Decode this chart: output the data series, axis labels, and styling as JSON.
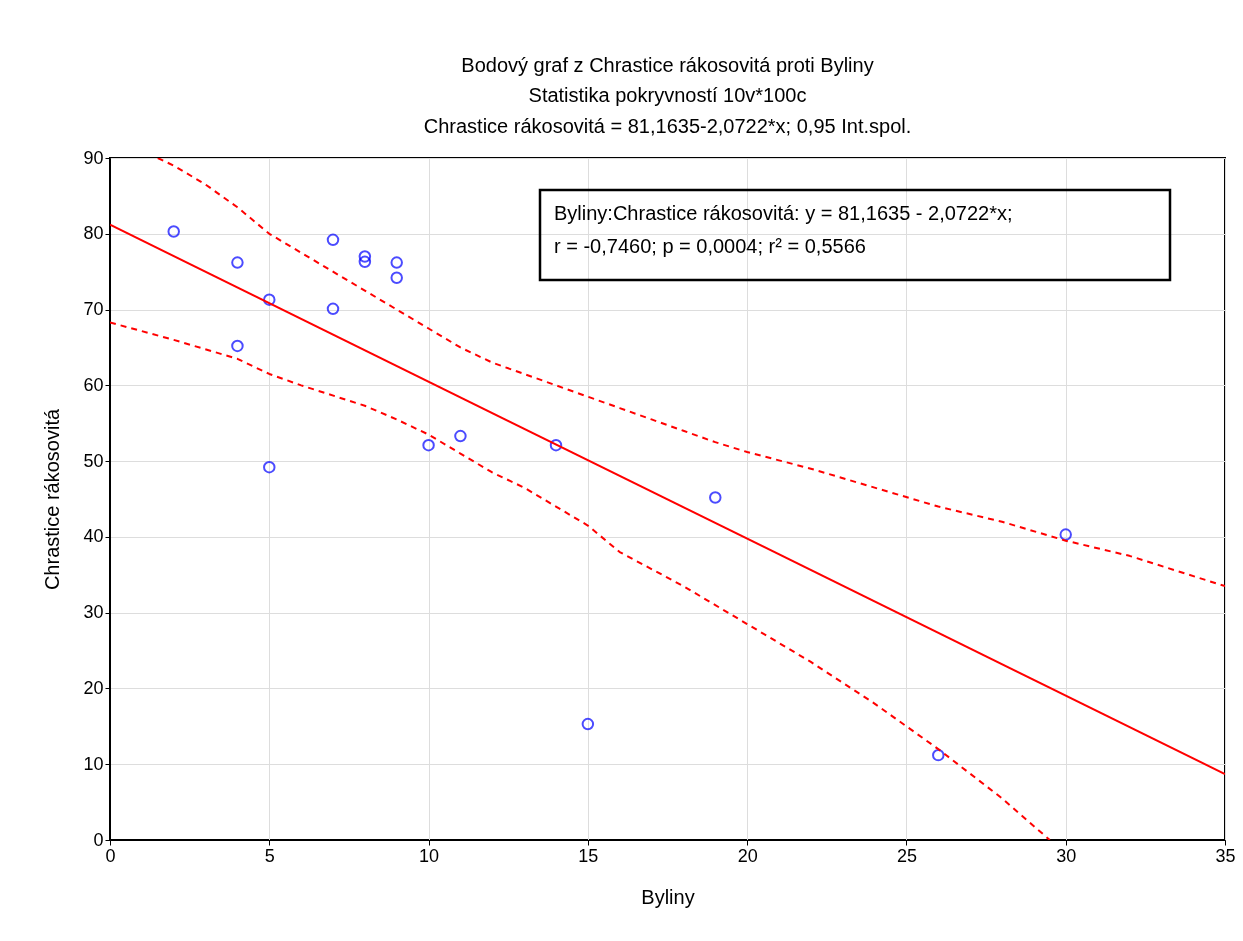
{
  "chart_data": {
    "type": "scatter",
    "title": "Bodový graf z Chrastice rákosovitá proti Byliny",
    "subtitle": "Statistika pokryvností 10v*100c",
    "xlabel": "Byliny",
    "ylabel": "Chrastice rákosovitá",
    "annotations": [
      "Chrastice rákosovitá = 81,1635-2,0722*x; 0,95 Int.spol.",
      "Byliny:Chrastice rákosovitá:   y = 81,1635 - 2,0722*x;",
      "r = -0,7460; p = 0,0004; r² = 0,5566"
    ],
    "series": [
      {
        "color": "#0000ff",
        "marker": "circle",
        "x": [
          2,
          4,
          4,
          5,
          5,
          7,
          7,
          8,
          8,
          9,
          9,
          10,
          11,
          14,
          15,
          19,
          26,
          30
        ],
        "values": [
          80.3,
          76.2,
          65.2,
          71.3,
          49.2,
          79.2,
          70.1,
          77,
          76.3,
          76.2,
          74.2,
          52.1,
          53.3,
          52.1,
          15.3,
          45.2,
          11.2,
          40.3
        ]
      },
      {
        "type": "line",
        "color": "#ff0000",
        "line_style": "solid",
        "x": [
          0,
          35
        ],
        "values": [
          81.2,
          8.7
        ]
      },
      {
        "type": "line",
        "color": "#ff0000",
        "line_style": "dashed",
        "x": [
          1.5,
          2,
          3,
          4,
          5,
          6,
          7,
          8,
          9,
          10,
          11,
          12,
          13,
          14,
          15,
          16,
          17,
          18,
          19,
          20,
          22,
          24,
          26,
          28,
          30,
          32,
          35
        ],
        "values": [
          90,
          89,
          86.5,
          83.5,
          80,
          77.5,
          75,
          72.5,
          70,
          67.5,
          65,
          63,
          61.5,
          60,
          58.5,
          57,
          55.5,
          54,
          52.5,
          51.2,
          49,
          46.5,
          44,
          42,
          39.5,
          37.5,
          33.5
        ]
      },
      {
        "type": "line",
        "color": "#ff0000",
        "line_style": "dashed",
        "x": [
          0,
          2,
          4,
          5,
          6,
          8,
          9,
          10,
          11,
          12,
          13,
          14,
          15,
          16,
          18,
          20,
          22,
          24,
          26,
          28,
          29.5
        ],
        "values": [
          68.3,
          66,
          63.5,
          61.5,
          60,
          57.3,
          55.5,
          53.5,
          51,
          48.5,
          46.5,
          44,
          41.5,
          38,
          33.5,
          28.5,
          23.5,
          18,
          12,
          5.5,
          0
        ]
      }
    ],
    "xlim": [
      0,
      35
    ],
    "ylim": [
      0,
      90
    ],
    "xticks": [
      0,
      5,
      10,
      15,
      20,
      25,
      30,
      35
    ],
    "yticks": [
      0,
      10,
      20,
      30,
      40,
      50,
      60,
      70,
      80,
      90
    ],
    "grid": true
  }
}
